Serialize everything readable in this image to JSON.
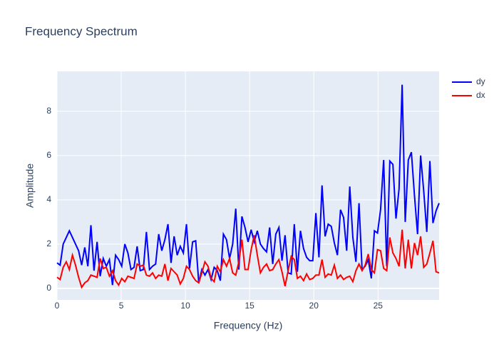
{
  "chart_data": {
    "type": "line",
    "title": "Frequency Spectrum",
    "x_label": "Frequency (Hz)",
    "y_label": "Amplitude",
    "x": [
      0,
      0.24,
      0.48,
      0.72,
      0.96,
      1.2,
      1.44,
      1.68,
      1.92,
      2.16,
      2.4,
      2.64,
      2.88,
      3.12,
      3.36,
      3.6,
      3.84,
      4.08,
      4.32,
      4.56,
      4.8,
      5.04,
      5.28,
      5.52,
      5.76,
      6,
      6.24,
      6.48,
      6.72,
      6.96,
      7.2,
      7.44,
      7.68,
      7.92,
      8.16,
      8.4,
      8.64,
      8.88,
      9.12,
      9.36,
      9.6,
      9.84,
      10.08,
      10.32,
      10.56,
      10.8,
      11.04,
      11.28,
      11.52,
      11.76,
      12,
      12.24,
      12.48,
      12.72,
      12.96,
      13.2,
      13.44,
      13.68,
      13.92,
      14.16,
      14.4,
      14.64,
      14.88,
      15.12,
      15.36,
      15.6,
      15.84,
      16.08,
      16.32,
      16.56,
      16.8,
      17.04,
      17.28,
      17.52,
      17.76,
      18,
      18.24,
      18.48,
      18.72,
      18.96,
      19.2,
      19.44,
      19.68,
      19.92,
      20.16,
      20.4,
      20.64,
      20.88,
      21.12,
      21.36,
      21.6,
      21.84,
      22.08,
      22.32,
      22.56,
      22.8,
      23.04,
      23.28,
      23.52,
      23.76,
      24,
      24.24,
      24.48,
      24.72,
      24.96,
      25.2,
      25.44,
      25.68,
      25.92,
      26.16,
      26.4,
      26.64,
      26.88,
      27.12,
      27.36,
      27.6,
      27.84,
      28.08,
      28.32,
      28.56,
      28.8,
      29.04,
      29.28,
      29.52,
      29.76
    ],
    "series": [
      {
        "name": "dy",
        "color": "#0000ff",
        "values": [
          1.15,
          1.05,
          2.0,
          2.3,
          2.6,
          2.3,
          2.0,
          1.7,
          1.05,
          1.85,
          1.0,
          2.85,
          0.8,
          2.1,
          0.55,
          1.35,
          1.0,
          1.3,
          0.15,
          1.5,
          1.3,
          1.0,
          2.0,
          1.6,
          0.85,
          0.95,
          1.9,
          0.8,
          0.85,
          2.55,
          0.85,
          1.0,
          1.1,
          2.45,
          1.7,
          2.2,
          2.9,
          1.15,
          2.35,
          1.5,
          1.9,
          1.6,
          2.9,
          0.9,
          2.1,
          2.15,
          0.25,
          0.85,
          0.6,
          0.85,
          0.4,
          0.95,
          0.8,
          0.35,
          2.45,
          2.2,
          1.35,
          2.0,
          3.6,
          0.85,
          3.25,
          2.75,
          2.1,
          2.65,
          2.1,
          2.6,
          2.0,
          1.8,
          1.65,
          2.75,
          1.1,
          2.45,
          2.75,
          1.25,
          2.4,
          0.7,
          0.65,
          2.9,
          0.75,
          2.6,
          1.8,
          1.4,
          1.25,
          1.25,
          3.4,
          1.4,
          4.65,
          2.35,
          2.9,
          2.8,
          2.05,
          1.5,
          3.55,
          3.2,
          1.7,
          4.6,
          2.3,
          1.2,
          3.85,
          0.85,
          1.0,
          1.3,
          0.45,
          2.6,
          2.5,
          3.55,
          5.8,
          1.0,
          5.75,
          5.6,
          3.15,
          4.5,
          9.2,
          3.0,
          5.8,
          6.15,
          4.2,
          2.45,
          6.0,
          4.4,
          2.55,
          5.75,
          2.95,
          3.5,
          3.85
        ]
      },
      {
        "name": "dx",
        "color": "#ff0000",
        "values": [
          0.5,
          0.4,
          0.95,
          1.2,
          0.85,
          1.5,
          1.05,
          0.5,
          0.05,
          0.25,
          0.35,
          0.6,
          0.55,
          0.5,
          1.35,
          0.9,
          0.95,
          0.55,
          0.8,
          0.35,
          0.15,
          0.45,
          0.3,
          0.55,
          0.5,
          0.45,
          1.1,
          1.0,
          1.05,
          0.6,
          0.55,
          0.7,
          0.45,
          0.6,
          0.55,
          1.1,
          0.35,
          0.9,
          0.75,
          0.6,
          0.2,
          0.45,
          1.0,
          0.85,
          0.55,
          0.35,
          0.25,
          0.7,
          1.2,
          1.0,
          0.45,
          0.3,
          1.0,
          0.75,
          1.3,
          1.0,
          1.35,
          0.7,
          0.6,
          1.2,
          2.2,
          0.85,
          0.85,
          1.75,
          2.4,
          1.5,
          0.7,
          0.95,
          1.1,
          0.8,
          0.85,
          1.1,
          1.3,
          0.75,
          0.1,
          0.8,
          1.45,
          1.3,
          0.45,
          0.55,
          0.35,
          0.65,
          0.4,
          0.45,
          0.6,
          0.6,
          1.3,
          0.5,
          0.65,
          0.6,
          1.05,
          0.45,
          0.6,
          0.4,
          0.5,
          0.55,
          0.3,
          0.8,
          1.1,
          0.8,
          1.05,
          1.55,
          0.85,
          0.7,
          1.75,
          1.7,
          0.9,
          0.8,
          2.3,
          1.6,
          1.35,
          1.0,
          2.65,
          0.9,
          2.2,
          0.9,
          2.05,
          1.5,
          2.35,
          0.95,
          1.1,
          1.6,
          2.15,
          0.75,
          0.7
        ]
      }
    ],
    "xlim": [
      0,
      29.76
    ],
    "ylim": [
      -0.52,
      9.8
    ],
    "xticks": [
      0,
      5,
      10,
      15,
      20,
      25
    ],
    "yticks": [
      0,
      2,
      4,
      6,
      8
    ],
    "grid": true,
    "legend": "right"
  }
}
